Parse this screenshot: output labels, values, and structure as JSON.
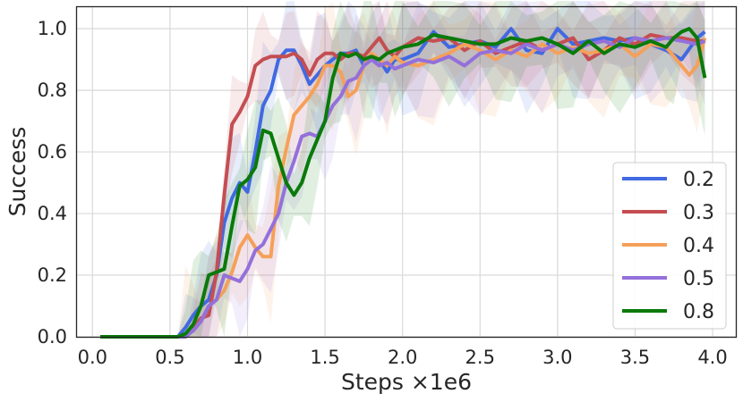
{
  "chart_data": {
    "type": "line",
    "title": "",
    "xlabel": "Steps ×1e6",
    "ylabel": "Success",
    "xlim": [
      -0.1,
      4.15
    ],
    "ylim": [
      0.0,
      1.07
    ],
    "xticks": [
      0.0,
      0.5,
      1.0,
      1.5,
      2.0,
      2.5,
      3.0,
      3.5,
      4.0
    ],
    "xtick_labels": [
      "0.0",
      "0.5",
      "1.0",
      "1.5",
      "2.0",
      "2.5",
      "3.0",
      "3.5",
      "4.0"
    ],
    "yticks": [
      0.0,
      0.2,
      0.4,
      0.6,
      0.8,
      1.0
    ],
    "ytick_labels": [
      "0.0",
      "0.2",
      "0.4",
      "0.6",
      "0.8",
      "1.0"
    ],
    "grid": true,
    "legend_position": "lower-right",
    "series": [
      {
        "name": "0.2",
        "color": "#4169e1",
        "band": 0.13,
        "x": [
          0.05,
          0.55,
          0.6,
          0.65,
          0.7,
          0.75,
          0.8,
          0.85,
          0.9,
          0.95,
          1.0,
          1.05,
          1.1,
          1.15,
          1.2,
          1.25,
          1.3,
          1.35,
          1.4,
          1.45,
          1.5,
          1.55,
          1.6,
          1.65,
          1.7,
          1.75,
          1.8,
          1.85,
          1.9,
          1.95,
          2.0,
          2.1,
          2.2,
          2.3,
          2.4,
          2.5,
          2.6,
          2.7,
          2.8,
          2.9,
          3.0,
          3.1,
          3.2,
          3.3,
          3.4,
          3.5,
          3.6,
          3.7,
          3.8,
          3.9,
          3.95
        ],
        "y": [
          0.0,
          0.0,
          0.03,
          0.07,
          0.1,
          0.12,
          0.2,
          0.37,
          0.45,
          0.5,
          0.47,
          0.6,
          0.75,
          0.8,
          0.9,
          0.93,
          0.93,
          0.88,
          0.82,
          0.85,
          0.88,
          0.9,
          0.92,
          0.92,
          0.93,
          0.88,
          0.9,
          0.9,
          0.86,
          0.9,
          0.9,
          0.92,
          0.99,
          0.94,
          0.95,
          0.96,
          0.94,
          1.0,
          0.93,
          0.92,
          1.0,
          0.95,
          0.96,
          0.97,
          0.96,
          0.97,
          0.95,
          0.93,
          0.9,
          0.97,
          0.99
        ]
      },
      {
        "name": "0.3",
        "color": "#c44e52",
        "band": 0.1,
        "x": [
          0.05,
          0.6,
          0.65,
          0.7,
          0.75,
          0.8,
          0.85,
          0.9,
          0.95,
          1.0,
          1.05,
          1.1,
          1.15,
          1.2,
          1.25,
          1.3,
          1.35,
          1.4,
          1.45,
          1.5,
          1.55,
          1.6,
          1.65,
          1.7,
          1.75,
          1.8,
          1.85,
          1.9,
          1.95,
          2.0,
          2.1,
          2.2,
          2.3,
          2.4,
          2.5,
          2.6,
          2.7,
          2.8,
          2.9,
          3.0,
          3.1,
          3.2,
          3.3,
          3.4,
          3.5,
          3.6,
          3.7,
          3.8,
          3.9,
          3.95
        ],
        "y": [
          0.0,
          0.0,
          0.03,
          0.06,
          0.07,
          0.21,
          0.46,
          0.69,
          0.73,
          0.78,
          0.88,
          0.9,
          0.91,
          0.91,
          0.91,
          0.92,
          0.9,
          0.85,
          0.9,
          0.92,
          0.92,
          0.9,
          0.92,
          0.92,
          0.91,
          0.94,
          0.97,
          0.93,
          0.91,
          0.94,
          0.97,
          0.96,
          0.97,
          0.93,
          0.96,
          0.92,
          0.94,
          0.96,
          0.93,
          0.95,
          0.97,
          0.9,
          0.93,
          0.97,
          0.95,
          0.98,
          0.97,
          0.97,
          0.96,
          0.96
        ]
      },
      {
        "name": "0.4",
        "color": "#f5a05a",
        "band": 0.14,
        "x": [
          0.05,
          0.55,
          0.6,
          0.65,
          0.7,
          0.75,
          0.8,
          0.85,
          0.9,
          0.95,
          1.0,
          1.05,
          1.1,
          1.15,
          1.2,
          1.25,
          1.3,
          1.35,
          1.4,
          1.45,
          1.5,
          1.55,
          1.6,
          1.65,
          1.7,
          1.75,
          1.8,
          1.85,
          1.9,
          1.95,
          2.0,
          2.1,
          2.2,
          2.3,
          2.4,
          2.5,
          2.6,
          2.7,
          2.8,
          2.9,
          3.0,
          3.1,
          3.2,
          3.3,
          3.4,
          3.5,
          3.6,
          3.7,
          3.8,
          3.85,
          3.9,
          3.95
        ],
        "y": [
          0.0,
          0.0,
          0.01,
          0.02,
          0.05,
          0.1,
          0.12,
          0.15,
          0.21,
          0.29,
          0.33,
          0.29,
          0.26,
          0.26,
          0.49,
          0.61,
          0.72,
          0.75,
          0.78,
          0.82,
          0.88,
          0.88,
          0.86,
          0.78,
          0.8,
          0.88,
          0.92,
          0.9,
          0.88,
          0.91,
          0.89,
          0.88,
          0.9,
          0.92,
          0.95,
          0.93,
          0.9,
          0.93,
          0.91,
          0.95,
          0.92,
          0.94,
          0.92,
          0.93,
          0.95,
          0.91,
          0.95,
          0.94,
          0.88,
          0.85,
          0.88,
          0.97
        ]
      },
      {
        "name": "0.5",
        "color": "#9370db",
        "band": 0.13,
        "x": [
          0.05,
          0.6,
          0.65,
          0.7,
          0.75,
          0.8,
          0.85,
          0.9,
          0.95,
          1.0,
          1.05,
          1.1,
          1.15,
          1.2,
          1.25,
          1.3,
          1.35,
          1.4,
          1.45,
          1.5,
          1.55,
          1.6,
          1.65,
          1.7,
          1.75,
          1.8,
          1.85,
          1.9,
          1.95,
          2.0,
          2.1,
          2.2,
          2.3,
          2.4,
          2.5,
          2.6,
          2.7,
          2.8,
          2.9,
          3.0,
          3.1,
          3.2,
          3.3,
          3.4,
          3.5,
          3.6,
          3.7,
          3.8,
          3.9,
          3.95
        ],
        "y": [
          0.0,
          0.0,
          0.02,
          0.05,
          0.1,
          0.12,
          0.2,
          0.19,
          0.18,
          0.22,
          0.28,
          0.3,
          0.35,
          0.4,
          0.5,
          0.57,
          0.65,
          0.66,
          0.65,
          0.7,
          0.75,
          0.78,
          0.83,
          0.84,
          0.88,
          0.9,
          0.88,
          0.89,
          0.87,
          0.88,
          0.9,
          0.89,
          0.91,
          0.88,
          0.92,
          0.93,
          0.92,
          0.95,
          0.93,
          0.95,
          0.93,
          0.95,
          0.96,
          0.94,
          0.97,
          0.96,
          0.97,
          0.96,
          0.95,
          0.96
        ]
      },
      {
        "name": "0.8",
        "color": "#0a7a0a",
        "band": 0.14,
        "x": [
          0.05,
          0.55,
          0.6,
          0.65,
          0.7,
          0.75,
          0.8,
          0.85,
          0.9,
          0.95,
          1.0,
          1.05,
          1.1,
          1.15,
          1.2,
          1.25,
          1.3,
          1.35,
          1.4,
          1.45,
          1.5,
          1.55,
          1.6,
          1.65,
          1.7,
          1.75,
          1.8,
          1.85,
          1.9,
          1.95,
          2.0,
          2.1,
          2.2,
          2.3,
          2.4,
          2.5,
          2.6,
          2.7,
          2.8,
          2.9,
          3.0,
          3.1,
          3.2,
          3.3,
          3.4,
          3.5,
          3.6,
          3.7,
          3.75,
          3.8,
          3.85,
          3.9,
          3.95
        ],
        "y": [
          0.0,
          0.0,
          0.01,
          0.04,
          0.1,
          0.2,
          0.21,
          0.22,
          0.36,
          0.49,
          0.51,
          0.55,
          0.67,
          0.66,
          0.58,
          0.5,
          0.46,
          0.5,
          0.58,
          0.64,
          0.7,
          0.84,
          0.92,
          0.91,
          0.92,
          0.9,
          0.91,
          0.9,
          0.92,
          0.93,
          0.94,
          0.95,
          0.98,
          0.97,
          0.96,
          0.95,
          0.95,
          0.97,
          0.96,
          0.97,
          0.95,
          0.92,
          0.96,
          0.92,
          0.95,
          0.94,
          0.96,
          0.94,
          0.97,
          0.99,
          1.0,
          0.97,
          0.84
        ]
      }
    ]
  }
}
